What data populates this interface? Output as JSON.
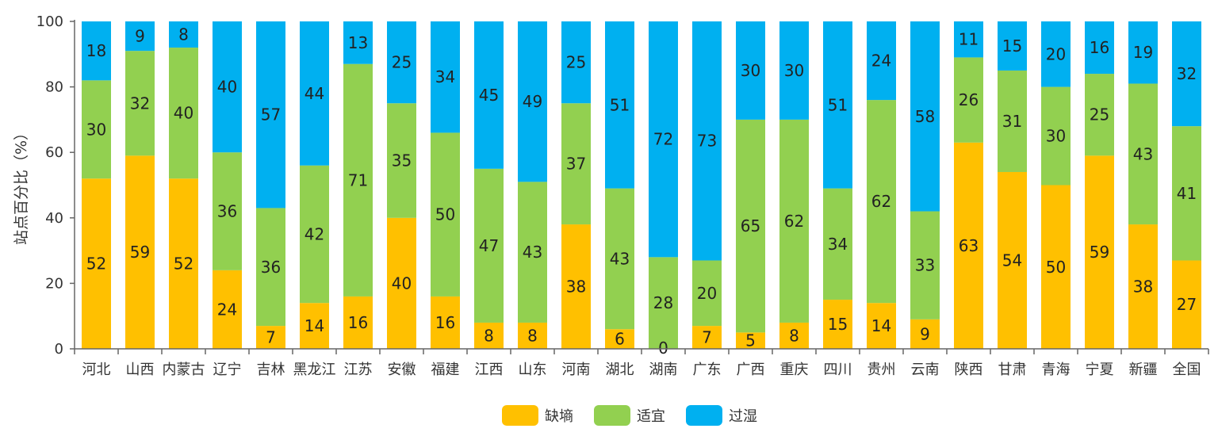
{
  "chart_data": {
    "type": "bar",
    "stacked": true,
    "ylabel": "站点百分比（%）",
    "ylim": [
      0,
      100
    ],
    "yticks": [
      0,
      20,
      40,
      60,
      80,
      100
    ],
    "categories": [
      "河北",
      "山西",
      "内蒙古",
      "辽宁",
      "吉林",
      "黑龙江",
      "江苏",
      "安徽",
      "福建",
      "江西",
      "山东",
      "河南",
      "湖北",
      "湖南",
      "广东",
      "广西",
      "重庆",
      "四川",
      "贵州",
      "云南",
      "陕西",
      "甘肃",
      "青海",
      "宁夏",
      "新疆",
      "全国"
    ],
    "series": [
      {
        "name": "缺墒",
        "color": "#FFC000",
        "values": [
          52,
          59,
          52,
          24,
          7,
          14,
          16,
          40,
          16,
          8,
          8,
          38,
          6,
          0,
          7,
          5,
          8,
          15,
          14,
          9,
          63,
          54,
          50,
          59,
          38,
          27
        ]
      },
      {
        "name": "适宜",
        "color": "#92D050",
        "values": [
          30,
          32,
          40,
          36,
          36,
          42,
          71,
          35,
          50,
          47,
          43,
          37,
          43,
          28,
          20,
          65,
          62,
          34,
          62,
          33,
          26,
          31,
          30,
          25,
          43,
          41
        ]
      },
      {
        "name": "过湿",
        "color": "#00B0F0",
        "values": [
          18,
          9,
          8,
          40,
          57,
          44,
          13,
          25,
          34,
          45,
          49,
          25,
          51,
          72,
          73,
          30,
          30,
          51,
          24,
          58,
          11,
          15,
          20,
          16,
          19,
          32
        ]
      }
    ],
    "legend_position": "bottom-center"
  }
}
